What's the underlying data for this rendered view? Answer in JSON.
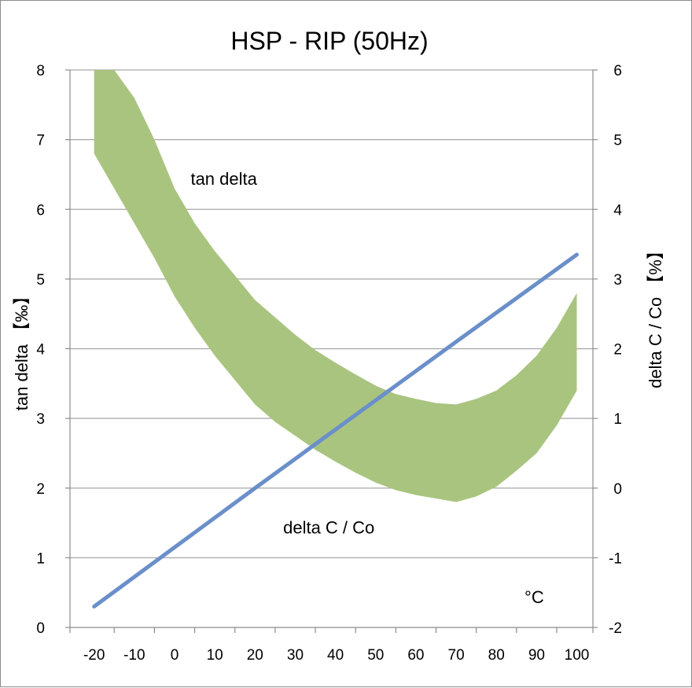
{
  "chart_data": {
    "type": "area",
    "title": "HSP  -  RIP    (50Hz)",
    "xlabel": "°C",
    "ylabel_left": "tan delta  【‰】",
    "ylabel_right": "delta C / Co  【%】",
    "xlim": [
      -26,
      104
    ],
    "ylim_left": [
      0,
      8
    ],
    "ylim_right": [
      -2,
      6
    ],
    "x_ticks": [
      "-20",
      "-10",
      "0",
      "10",
      "20",
      "30",
      "40",
      "50",
      "60",
      "70",
      "80",
      "90",
      "100"
    ],
    "y_left_ticks": [
      "0",
      "1",
      "2",
      "3",
      "4",
      "5",
      "6",
      "7",
      "8"
    ],
    "y_right_ticks": [
      "-2",
      "-1",
      "0",
      "1",
      "2",
      "3",
      "4",
      "5",
      "6"
    ],
    "grid": "horizontal",
    "colors": {
      "band": "#a9c47f",
      "line": "#6a8fca",
      "grid": "#a6a6a6"
    },
    "series": [
      {
        "name": "tan delta",
        "kind": "band",
        "axis": "left",
        "x": [
          -20,
          -15,
          -10,
          -5,
          0,
          5,
          10,
          15,
          20,
          25,
          30,
          35,
          40,
          45,
          50,
          55,
          60,
          65,
          70,
          75,
          80,
          85,
          90,
          95,
          100
        ],
        "upper": [
          8.0,
          8.0,
          7.6,
          7.0,
          6.3,
          5.8,
          5.4,
          5.05,
          4.7,
          4.45,
          4.2,
          3.98,
          3.8,
          3.63,
          3.47,
          3.35,
          3.28,
          3.22,
          3.2,
          3.28,
          3.4,
          3.62,
          3.9,
          4.3,
          4.8
        ],
        "lower": [
          6.8,
          6.3,
          5.8,
          5.3,
          4.75,
          4.3,
          3.9,
          3.55,
          3.2,
          2.95,
          2.75,
          2.55,
          2.38,
          2.22,
          2.08,
          1.97,
          1.9,
          1.85,
          1.8,
          1.88,
          2.02,
          2.25,
          2.5,
          2.9,
          3.4
        ]
      },
      {
        "name": "delta C / Co",
        "kind": "line",
        "axis": "right",
        "x": [
          -20,
          20,
          70,
          100
        ],
        "y": [
          -1.7,
          0.0,
          2.1,
          3.35
        ]
      }
    ],
    "annotations": [
      {
        "text": "tan delta",
        "x": 4,
        "y": 6.35,
        "axis": "left"
      },
      {
        "text": "delta C / Co",
        "x": 27,
        "y": 1.35,
        "axis": "left"
      },
      {
        "text": "°C",
        "x": 87,
        "y": 0.35,
        "axis": "left"
      }
    ]
  }
}
